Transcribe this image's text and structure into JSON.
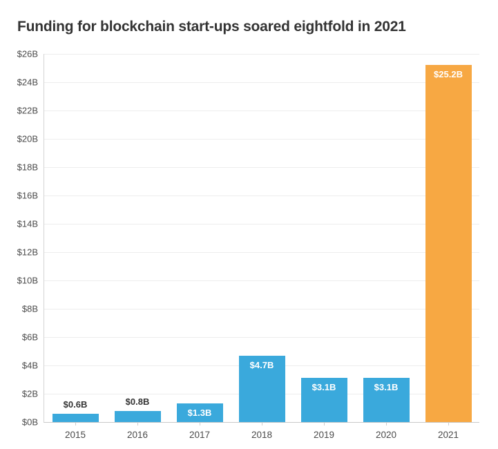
{
  "chart_data": {
    "type": "bar",
    "title": "Funding for blockchain start-ups soared eightfold in 2021",
    "categories": [
      "2015",
      "2016",
      "2017",
      "2018",
      "2019",
      "2020",
      "2021"
    ],
    "values": [
      0.6,
      0.8,
      1.3,
      4.7,
      3.1,
      3.1,
      25.2
    ],
    "bar_labels": [
      "$0.6B",
      "$0.8B",
      "$1.3B",
      "$4.7B",
      "$3.1B",
      "$3.1B",
      "$25.2B"
    ],
    "bar_label_positions": [
      "above",
      "above",
      "inside",
      "inside",
      "inside",
      "inside",
      "inside"
    ],
    "bar_colors": [
      "#3AA9DC",
      "#3AA9DC",
      "#3AA9DC",
      "#3AA9DC",
      "#3AA9DC",
      "#3AA9DC",
      "#F7A843"
    ],
    "y_tick_labels": [
      "$0B",
      "$2B",
      "$4B",
      "$6B",
      "$8B",
      "$10B",
      "$12B",
      "$14B",
      "$16B",
      "$18B",
      "$20B",
      "$22B",
      "$24B",
      "$26B"
    ],
    "y_tick_values": [
      0,
      2,
      4,
      6,
      8,
      10,
      12,
      14,
      16,
      18,
      20,
      22,
      24,
      26
    ],
    "ylim": [
      0,
      26
    ],
    "xlabel": "",
    "ylabel": "",
    "grid": "horizontal",
    "legend": "none",
    "colors": {
      "bar_blue": "#3AA9DC",
      "bar_orange": "#F7A843",
      "gridline": "#EDEDED",
      "axis": "#C9C9C9",
      "title_text": "#333333",
      "tick_text": "#4A4A4A",
      "value_label_dark": "#333333",
      "value_label_light": "#FFFFFF",
      "background": "#FFFFFF"
    }
  }
}
